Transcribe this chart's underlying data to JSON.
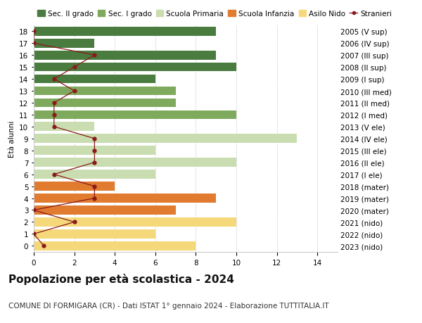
{
  "ages": [
    0,
    1,
    2,
    3,
    4,
    5,
    6,
    7,
    8,
    9,
    10,
    11,
    12,
    13,
    14,
    15,
    16,
    17,
    18
  ],
  "years_labels": [
    "2023 (nido)",
    "2022 (nido)",
    "2021 (nido)",
    "2020 (mater)",
    "2019 (mater)",
    "2018 (mater)",
    "2017 (I ele)",
    "2016 (II ele)",
    "2015 (III ele)",
    "2014 (IV ele)",
    "2013 (V ele)",
    "2012 (I med)",
    "2011 (II med)",
    "2010 (III med)",
    "2009 (I sup)",
    "2008 (II sup)",
    "2007 (III sup)",
    "2006 (IV sup)",
    "2005 (V sup)"
  ],
  "bar_values": [
    8,
    6,
    10,
    7,
    9,
    4,
    6,
    10,
    6,
    13,
    3,
    10,
    7,
    7,
    6,
    10,
    9,
    3,
    9
  ],
  "bar_colors": [
    "#f5d87a",
    "#f5d87a",
    "#f5d87a",
    "#e07b30",
    "#e07b30",
    "#e07b30",
    "#c9ddb0",
    "#c9ddb0",
    "#c9ddb0",
    "#c9ddb0",
    "#c9ddb0",
    "#7faa5e",
    "#7faa5e",
    "#7faa5e",
    "#4a7c3f",
    "#4a7c3f",
    "#4a7c3f",
    "#4a7c3f",
    "#4a7c3f"
  ],
  "stranieri_values": [
    0.5,
    0,
    2,
    0,
    3,
    3,
    1,
    3,
    3,
    3,
    1,
    1,
    1,
    2,
    1,
    2,
    3,
    0,
    0
  ],
  "stranieri_color": "#8b1a1a",
  "title": "Popolazione per età scolastica - 2024",
  "subtitle": "COMUNE DI FORMIGARA (CR) - Dati ISTAT 1° gennaio 2024 - Elaborazione TUTTITALIA.IT",
  "ylabel": "Età alunni",
  "xlim": [
    0,
    15
  ],
  "legend_labels": [
    "Sec. II grado",
    "Sec. I grado",
    "Scuola Primaria",
    "Scuola Infanzia",
    "Asilo Nido",
    "Stranieri"
  ],
  "legend_colors": [
    "#4a7c3f",
    "#7faa5e",
    "#c9ddb0",
    "#e07b30",
    "#f5d87a",
    "#8b1a1a"
  ],
  "bg_color": "#ffffff",
  "grid_color": "#cccccc",
  "bar_height": 0.75,
  "title_fontsize": 11,
  "subtitle_fontsize": 7.5,
  "axis_fontsize": 7.5,
  "legend_fontsize": 7.5
}
